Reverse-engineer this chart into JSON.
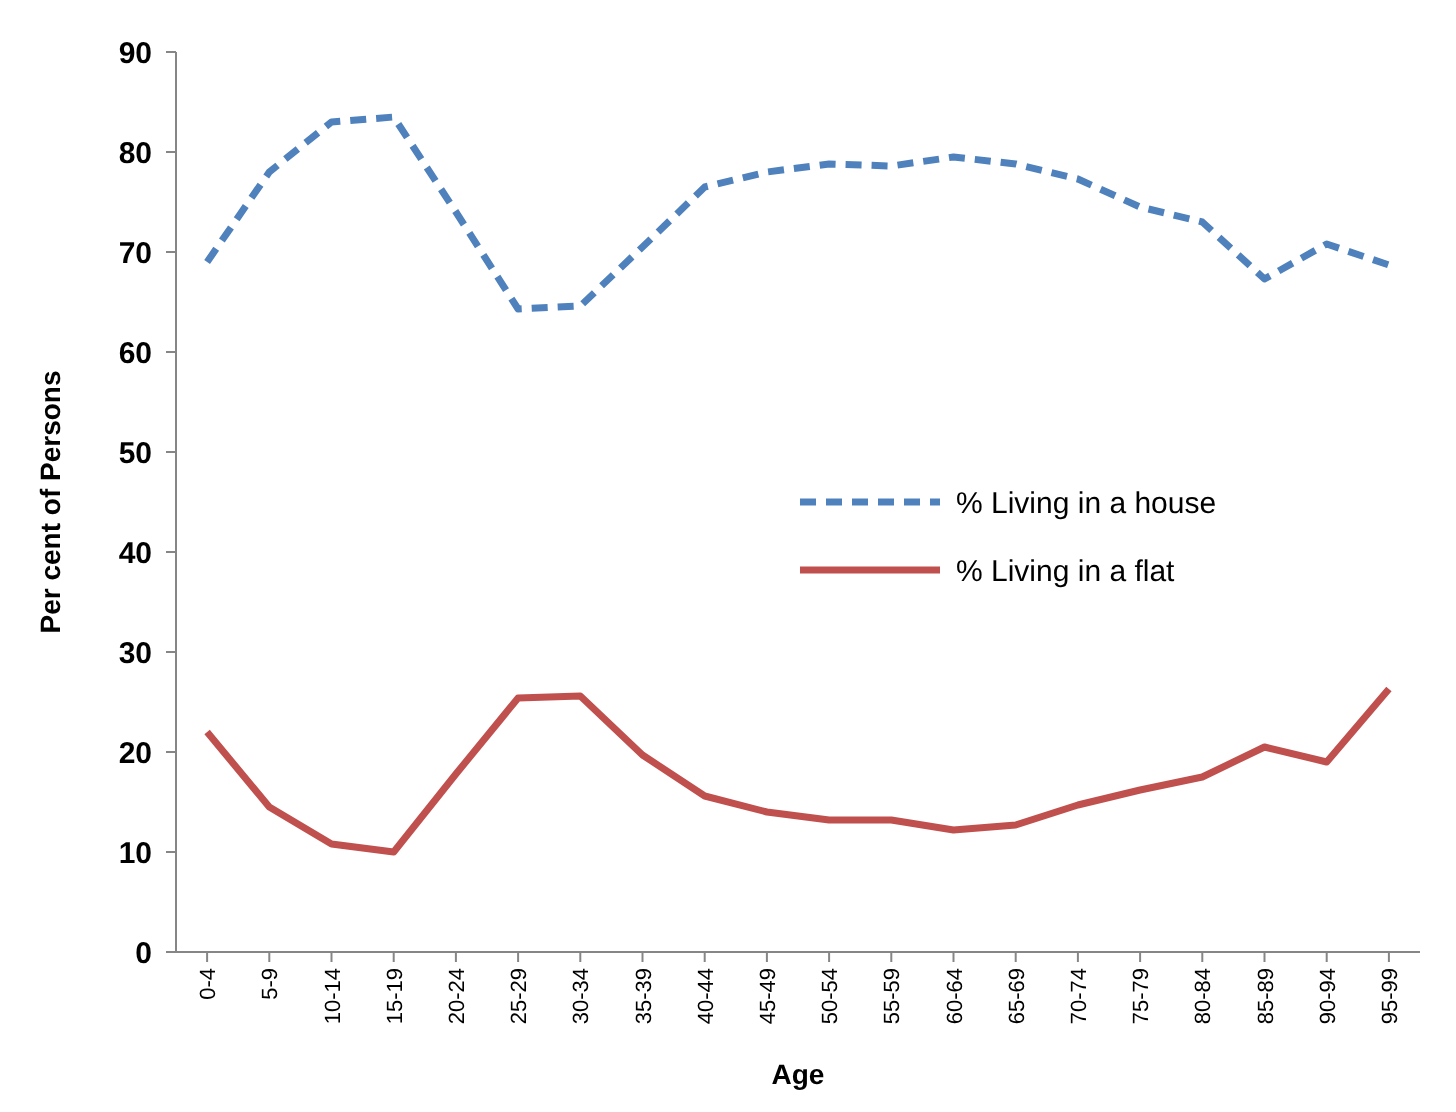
{
  "chart_data": {
    "type": "line",
    "xlabel": "Age",
    "ylabel": "Per cent of Persons",
    "categories": [
      "0-4",
      "5-9",
      "10-14",
      "15-19",
      "20-24",
      "25-29",
      "30-34",
      "35-39",
      "40-44",
      "45-49",
      "50-54",
      "55-59",
      "60-64",
      "65-69",
      "70-74",
      "75-79",
      "80-84",
      "85-89",
      "90-94",
      "95-99"
    ],
    "series": [
      {
        "name": "% Living in a house",
        "color": "#4f81bd",
        "line_style": "dashed",
        "values": [
          69,
          78,
          83,
          83.5,
          74,
          64.3,
          64.6,
          70.5,
          76.5,
          78,
          78.8,
          78.6,
          79.5,
          78.8,
          77.3,
          74.5,
          73,
          67.3,
          70.8,
          68.7
        ]
      },
      {
        "name": "% Living in a flat",
        "color": "#c0504d",
        "line_style": "solid",
        "values": [
          22,
          14.5,
          10.8,
          10,
          17.8,
          25.4,
          25.6,
          19.7,
          15.6,
          14,
          13.2,
          13.2,
          12.2,
          12.7,
          14.7,
          16.2,
          17.5,
          20.5,
          19,
          26.3
        ]
      }
    ],
    "ylim": [
      0,
      90
    ],
    "yticks": [
      0,
      10,
      20,
      30,
      40,
      50,
      60,
      70,
      80,
      90
    ],
    "grid": false,
    "legend": "right",
    "marker": "none"
  }
}
